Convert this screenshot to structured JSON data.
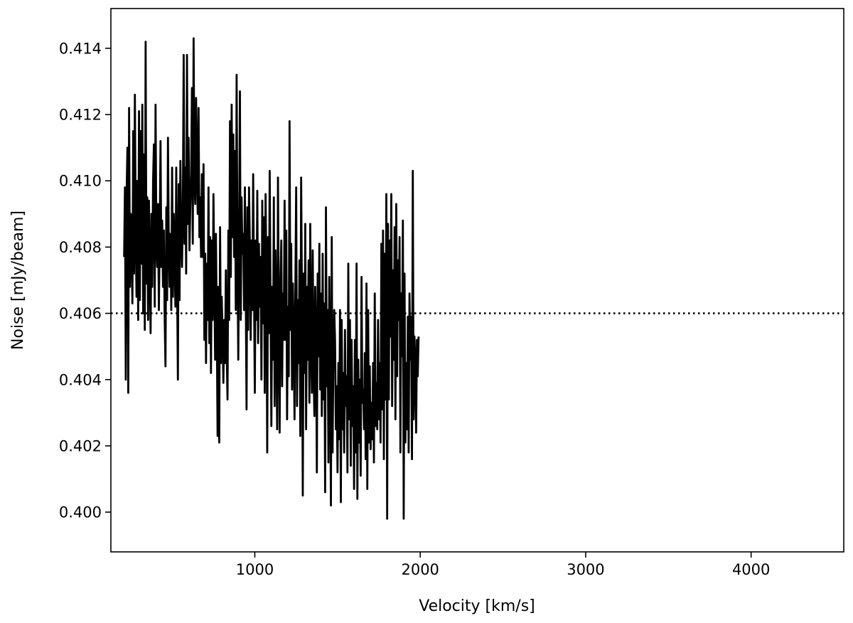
{
  "chart_data": {
    "type": "line",
    "title": "",
    "xlabel": "Velocity [km/s]",
    "ylabel": "Noise [mJy/beam]",
    "xlim": [
      130,
      4560
    ],
    "ylim": [
      0.3988,
      0.4152
    ],
    "x_ticks": [
      1000,
      2000,
      3000,
      4000
    ],
    "x_tick_labels": [
      "1000",
      "2000",
      "3000",
      "4000"
    ],
    "y_ticks": [
      0.4,
      0.402,
      0.404,
      0.406,
      0.408,
      0.41,
      0.412,
      0.414
    ],
    "y_tick_labels": [
      "0.400",
      "0.402",
      "0.404",
      "0.406",
      "0.408",
      "0.410",
      "0.412",
      "0.414"
    ],
    "grid": false,
    "legend": "none",
    "series": [
      {
        "style": "solid",
        "color": "#000000",
        "x_start": 210,
        "x_step": 5,
        "values": [
          0.4077,
          0.4098,
          0.404,
          0.4096,
          0.411,
          0.4036,
          0.4122,
          0.4068,
          0.409,
          0.408,
          0.4063,
          0.4115,
          0.4072,
          0.4126,
          0.4085,
          0.4065,
          0.41,
          0.4058,
          0.4121,
          0.4064,
          0.4115,
          0.4075,
          0.4123,
          0.406,
          0.4108,
          0.4055,
          0.4142,
          0.4069,
          0.4095,
          0.4058,
          0.4094,
          0.4075,
          0.4054,
          0.409,
          0.4068,
          0.41,
          0.4111,
          0.4062,
          0.4123,
          0.4081,
          0.4074,
          0.4093,
          0.4061,
          0.4083,
          0.4112,
          0.4074,
          0.4088,
          0.4068,
          0.4085,
          0.4059,
          0.4044,
          0.4092,
          0.4064,
          0.4113,
          0.4081,
          0.4068,
          0.4084,
          0.4061,
          0.4104,
          0.4065,
          0.409,
          0.4078,
          0.4062,
          0.4104,
          0.4071,
          0.404,
          0.4099,
          0.4064,
          0.4106,
          0.4085,
          0.4074,
          0.4091,
          0.4138,
          0.4081,
          0.4104,
          0.4072,
          0.4138,
          0.4087,
          0.4113,
          0.4079,
          0.4092,
          0.4102,
          0.4128,
          0.4081,
          0.4143,
          0.4101,
          0.4093,
          0.4125,
          0.4104,
          0.409,
          0.4122,
          0.4083,
          0.4095,
          0.4077,
          0.4102,
          0.4077,
          0.4105,
          0.4052,
          0.4078,
          0.4045,
          0.4075,
          0.4058,
          0.4098,
          0.4051,
          0.4083,
          0.4042,
          0.4082,
          0.4058,
          0.4096,
          0.4072,
          0.4046,
          0.4084,
          0.4057,
          0.4023,
          0.4068,
          0.4021,
          0.4086,
          0.4045,
          0.4065,
          0.4054,
          0.4039,
          0.4058,
          0.4045,
          0.4073,
          0.4048,
          0.4034,
          0.4085,
          0.4058,
          0.4118,
          0.4071,
          0.4123,
          0.4083,
          0.4114,
          0.4077,
          0.4109,
          0.4061,
          0.4132,
          0.4078,
          0.4046,
          0.4082,
          0.4127,
          0.4058,
          0.4095,
          0.4078,
          0.4084,
          0.4061,
          0.4098,
          0.4069,
          0.4031,
          0.4092,
          0.4055,
          0.4098,
          0.4081,
          0.4052,
          0.4082,
          0.4061,
          0.4102,
          0.4069,
          0.4036,
          0.4082,
          0.4058,
          0.4097,
          0.4051,
          0.4081,
          0.4062,
          0.4077,
          0.404,
          0.4094,
          0.4057,
          0.4089,
          0.4036,
          0.4096,
          0.4073,
          0.4018,
          0.4083,
          0.4054,
          0.4103,
          0.4064,
          0.4026,
          0.4068,
          0.4046,
          0.4095,
          0.4032,
          0.4079,
          0.4055,
          0.4025,
          0.4101,
          0.4058,
          0.4024,
          0.4069,
          0.4082,
          0.4038,
          0.4066,
          0.4052,
          0.4094,
          0.4052,
          0.4085,
          0.4028,
          0.4062,
          0.4041,
          0.4118,
          0.4055,
          0.4081,
          0.4037,
          0.4069,
          0.4053,
          0.4028,
          0.4067,
          0.4098,
          0.4032,
          0.4064,
          0.4045,
          0.4076,
          0.4023,
          0.4101,
          0.4064,
          0.4005,
          0.4072,
          0.4042,
          0.4087,
          0.4025,
          0.4068,
          0.4046,
          0.4076,
          0.4033,
          0.4087,
          0.4052,
          0.4036,
          0.4079,
          0.4044,
          0.4029,
          0.4068,
          0.4052,
          0.4012,
          0.4072,
          0.4047,
          0.4081,
          0.4037,
          0.4066,
          0.4029,
          0.4078,
          0.4034,
          0.4063,
          0.4006,
          0.4092,
          0.4038,
          0.4061,
          0.4015,
          0.4071,
          0.4043,
          0.4002,
          0.4083,
          0.4018,
          0.4047,
          0.4061,
          0.4052,
          0.4025,
          0.4038,
          0.4012,
          0.4045,
          0.4022,
          0.4061,
          0.4003,
          0.4058,
          0.4025,
          0.4042,
          0.4018,
          0.4055,
          0.4032,
          0.4041,
          0.4012,
          0.4075,
          0.4028,
          0.4058,
          0.4014,
          0.4052,
          0.4026,
          0.4038,
          0.4007,
          0.4052,
          0.4018,
          0.4075,
          0.4004,
          0.4046,
          0.4021,
          0.404,
          0.4011,
          0.4071,
          0.4033,
          0.4037,
          0.4025,
          0.4048,
          0.4016,
          0.4069,
          0.4007,
          0.4061,
          0.4021,
          0.4044,
          0.4019,
          0.4033,
          0.4022,
          0.4045,
          0.4015,
          0.4066,
          0.4026,
          0.4039,
          0.4025,
          0.4058,
          0.4028,
          0.4045,
          0.4021,
          0.4081,
          0.4031,
          0.4085,
          0.4016,
          0.4078,
          0.4034,
          0.4096,
          0.3998,
          0.4087,
          0.4034,
          0.4082,
          0.4053,
          0.4096,
          0.4032,
          0.4073,
          0.4046,
          0.4086,
          0.4028,
          0.4093,
          0.4041,
          0.4076,
          0.4058,
          0.4083,
          0.4018,
          0.4066,
          0.4047,
          0.4088,
          0.3998,
          0.4072,
          0.4021,
          0.4045,
          0.4025,
          0.4059,
          0.4018,
          0.4066,
          0.4046,
          0.4059,
          0.4016,
          0.4103,
          0.4028,
          0.4053,
          0.4045,
          0.4024,
          0.4052,
          0.4041,
          0.4053
        ]
      },
      {
        "style": "dotted",
        "color": "#000000",
        "name": "",
        "x": [
          130,
          4560
        ],
        "values": [
          0.406,
          0.406
        ]
      }
    ]
  }
}
